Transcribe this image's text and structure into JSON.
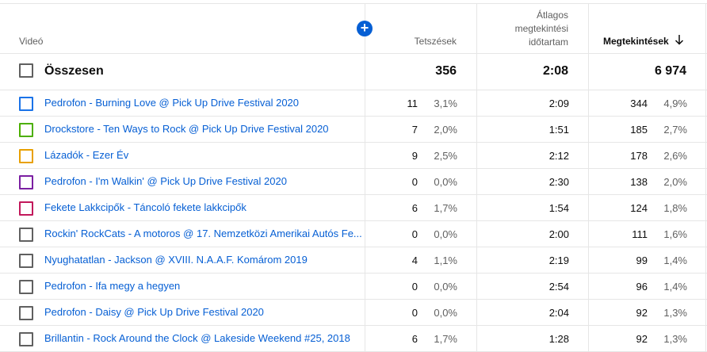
{
  "header": {
    "video": "Videó",
    "likes": "Tetszések",
    "avg_line1": "Átlagos",
    "avg_line2": "megtekintési",
    "avg_line3": "időtartam",
    "views": "Megtekintések",
    "add_icon": "+",
    "sort_icon": "arrow-down-icon"
  },
  "total": {
    "label": "Összesen",
    "likes": "356",
    "avg": "2:08",
    "views": "6 974"
  },
  "colors": {
    "link": "#065fd4",
    "checkbox_colors": [
      "#1a73e8",
      "#4caf00",
      "#e8a000",
      "#7b1fa2",
      "#c2185b",
      "#606060",
      "#606060",
      "#606060",
      "#606060",
      "#606060"
    ]
  },
  "rows": [
    {
      "title": "Pedrofon - Burning Love @ Pick Up Drive Festival 2020",
      "likes": "11",
      "likes_pct": "3,1%",
      "avg": "2:09",
      "views": "344",
      "views_pct": "4,9%"
    },
    {
      "title": "Drockstore - Ten Ways to Rock @ Pick Up Drive Festival 2020",
      "likes": "7",
      "likes_pct": "2,0%",
      "avg": "1:51",
      "views": "185",
      "views_pct": "2,7%"
    },
    {
      "title": "Lázadók - Ezer Év",
      "likes": "9",
      "likes_pct": "2,5%",
      "avg": "2:12",
      "views": "178",
      "views_pct": "2,6%"
    },
    {
      "title": "Pedrofon - I'm Walkin' @ Pick Up Drive Festival 2020",
      "likes": "0",
      "likes_pct": "0,0%",
      "avg": "2:30",
      "views": "138",
      "views_pct": "2,0%"
    },
    {
      "title": "Fekete Lakkcipők - Táncoló fekete lakkcipők",
      "likes": "6",
      "likes_pct": "1,7%",
      "avg": "1:54",
      "views": "124",
      "views_pct": "1,8%"
    },
    {
      "title": "Rockin' RockCats - A motoros @ 17. Nemzetközi Amerikai Autós Fe...",
      "likes": "0",
      "likes_pct": "0,0%",
      "avg": "2:00",
      "views": "111",
      "views_pct": "1,6%"
    },
    {
      "title": "Nyughatatlan - Jackson @ XVIII. N.A.A.F. Komárom 2019",
      "likes": "4",
      "likes_pct": "1,1%",
      "avg": "2:19",
      "views": "99",
      "views_pct": "1,4%"
    },
    {
      "title": "Pedrofon - Ifa megy a hegyen",
      "likes": "0",
      "likes_pct": "0,0%",
      "avg": "2:54",
      "views": "96",
      "views_pct": "1,4%"
    },
    {
      "title": "Pedrofon - Daisy @ Pick Up Drive Festival 2020",
      "likes": "0",
      "likes_pct": "0,0%",
      "avg": "2:04",
      "views": "92",
      "views_pct": "1,3%"
    },
    {
      "title": "Brillantin - Rock Around the Clock @ Lakeside Weekend #25, 2018",
      "likes": "6",
      "likes_pct": "1,7%",
      "avg": "1:28",
      "views": "92",
      "views_pct": "1,3%"
    }
  ]
}
